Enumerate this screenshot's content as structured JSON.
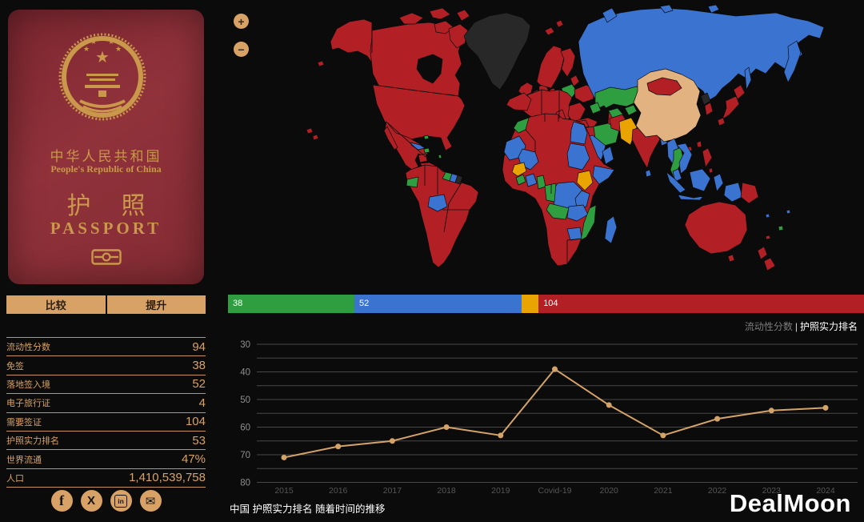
{
  "sidebar": {
    "passport": {
      "country_cn": "中华人民共和国",
      "country_en": "People's Republic of China",
      "title_cn_1": "护",
      "title_cn_2": "照",
      "title_en": "PASSPORT"
    },
    "buttons": {
      "compare": "比较",
      "improve": "提升"
    },
    "stats": [
      {
        "label": "流动性分数",
        "value": "94"
      },
      {
        "label": "免签",
        "value": "38"
      },
      {
        "label": "落地签入境",
        "value": "52"
      },
      {
        "label": "电子旅行证",
        "value": "4"
      },
      {
        "label": "需要签证",
        "value": "104"
      },
      {
        "label": "护照实力排名",
        "value": "53"
      },
      {
        "label": "世界流通",
        "value": "47%"
      },
      {
        "label": "人口",
        "value": "1,410,539,758"
      }
    ],
    "social": [
      "facebook",
      "x",
      "linkedin",
      "email"
    ]
  },
  "map": {
    "zoom_in": "+",
    "zoom_out": "−",
    "colors": {
      "visa_free": "#2f9e41",
      "visa_on_arrival": "#3b74d0",
      "eta": "#e9a402",
      "visa_required": "#b22025",
      "selected": "#e2b381",
      "no_data": "#282828",
      "ocean": "#0b0b0b"
    }
  },
  "bar": {
    "segments": [
      {
        "label": "38",
        "value": 38,
        "color_key": "visa_free"
      },
      {
        "label": "52",
        "value": 52,
        "color_key": "visa_on_arrival"
      },
      {
        "label": "",
        "value": 4,
        "color_key": "eta"
      },
      {
        "label": "104",
        "value": 104,
        "color_key": "visa_required"
      }
    ]
  },
  "legend": {
    "mobility": "流动性分数",
    "divider": "|",
    "rank": "护照实力排名"
  },
  "chart_data": {
    "type": "line",
    "x": [
      "2015",
      "2016",
      "2017",
      "2018",
      "2019",
      "Covid-19",
      "2020",
      "2021",
      "2022",
      "2023",
      "2024"
    ],
    "values": [
      71,
      67,
      65,
      60,
      63,
      39,
      52,
      63,
      57,
      54,
      53
    ],
    "series_name": "护照实力排名",
    "ylim": [
      30,
      80
    ],
    "y_inverted": true,
    "yticks": [
      30,
      40,
      50,
      60,
      70,
      80
    ],
    "grid_step": 5,
    "line_color": "#d4a368",
    "grid_color": "#474747",
    "ytick_color": "#8f8f8f",
    "xtick_color": "#565656"
  },
  "caption": "中国 护照实力排名 随着时间的推移",
  "watermark": "DealMoon"
}
